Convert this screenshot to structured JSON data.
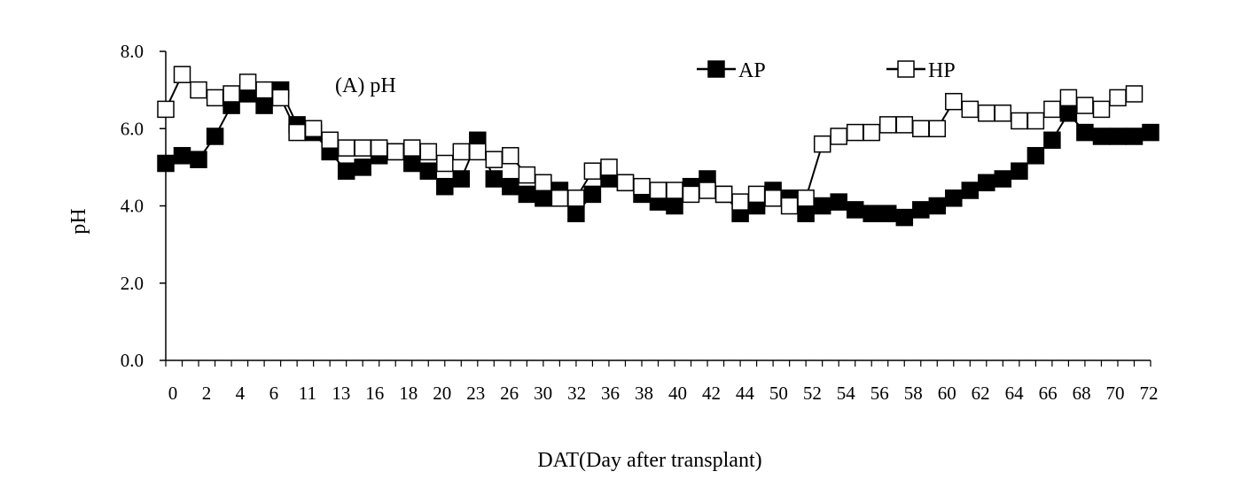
{
  "chart_data": {
    "type": "line",
    "title": "",
    "panel_label": "(A) pH",
    "xlabel": "DAT(Day after transplant)",
    "ylabel": "pH",
    "ylim": [
      0,
      8
    ],
    "yticks": [
      "0.0",
      "2.0",
      "4.0",
      "6.0",
      "8.0"
    ],
    "x_tick_labels": [
      "0",
      "2",
      "4",
      "6",
      "11",
      "13",
      "16",
      "18",
      "20",
      "23",
      "26",
      "30",
      "32",
      "36",
      "38",
      "40",
      "42",
      "44",
      "50",
      "52",
      "54",
      "56",
      "58",
      "60",
      "62",
      "64",
      "66",
      "68",
      "70",
      "72"
    ],
    "grid": false,
    "legend_position": "top-right",
    "series": [
      {
        "name": "AP",
        "marker": "filled-square",
        "color": "#000000",
        "values": [
          5.1,
          5.3,
          5.2,
          5.8,
          6.6,
          6.9,
          6.6,
          7.0,
          6.1,
          5.9,
          5.4,
          4.9,
          5.0,
          5.3,
          5.4,
          5.1,
          4.9,
          4.5,
          4.7,
          5.7,
          4.7,
          4.5,
          4.3,
          4.2,
          4.4,
          3.8,
          4.3,
          4.7,
          4.6,
          4.3,
          4.1,
          4.0,
          4.5,
          4.7,
          4.3,
          3.8,
          4.0,
          4.4,
          4.2,
          3.8,
          4.0,
          4.1,
          3.9,
          3.8,
          3.8,
          3.7,
          3.9,
          4.0,
          4.2,
          4.4,
          4.6,
          4.7,
          4.9,
          5.3,
          5.7,
          6.4,
          5.9,
          5.8,
          5.8,
          5.8,
          5.9
        ]
      },
      {
        "name": "HP",
        "marker": "open-square",
        "color": "#000000",
        "values": [
          6.5,
          7.4,
          7.0,
          6.8,
          6.9,
          7.2,
          7.0,
          6.8,
          5.9,
          6.0,
          5.7,
          5.5,
          5.5,
          5.5,
          5.4,
          5.5,
          5.4,
          5.1,
          5.4,
          5.4,
          5.2,
          5.3,
          4.8,
          4.6,
          4.2,
          4.2,
          4.9,
          5.0,
          4.6,
          4.5,
          4.4,
          4.4,
          4.3,
          4.4,
          4.3,
          4.1,
          4.3,
          4.2,
          4.0,
          4.2,
          5.6,
          5.8,
          5.9,
          5.9,
          6.1,
          6.1,
          6.0,
          6.0,
          6.7,
          6.5,
          6.4,
          6.4,
          6.2,
          6.2,
          6.5,
          6.8,
          6.6,
          6.5,
          6.8,
          6.9
        ]
      }
    ]
  }
}
